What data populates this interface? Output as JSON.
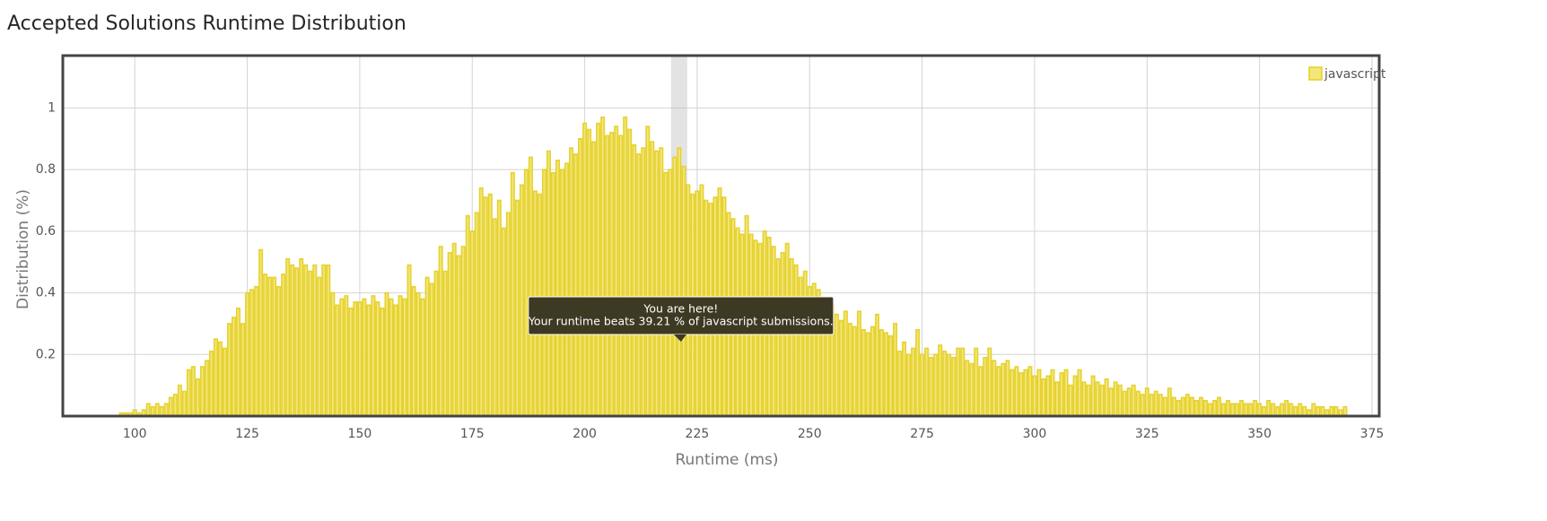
{
  "chart_data": {
    "type": "bar",
    "title": "Accepted Solutions Runtime Distribution",
    "x_label": "Runtime (ms)",
    "y_label": "Distribution (%)",
    "xlim": [
      84,
      376.6
    ],
    "ylim": [
      0,
      1.17
    ],
    "xticks": [
      100,
      125,
      150,
      175,
      200,
      225,
      250,
      275,
      300,
      325,
      350,
      375
    ],
    "yticks": [
      0.2,
      0.4,
      0.6,
      0.8,
      1.0
    ],
    "grid": true,
    "legend": "top-right",
    "highlight": 221,
    "annotations": [
      "You are here!",
      "Your runtime beats 39.21 % of javascript submissions."
    ],
    "series": [
      {
        "name": "javascript",
        "color": "#f3e67a",
        "edge_color": "#e6d230",
        "x": [
          95,
          96,
          97,
          98,
          99,
          100,
          101,
          102,
          103,
          104,
          105,
          106,
          107,
          108,
          109,
          110,
          111,
          112,
          113,
          114,
          115,
          116,
          117,
          118,
          119,
          120,
          121,
          122,
          123,
          124,
          125,
          126,
          127,
          128,
          129,
          130,
          131,
          132,
          133,
          134,
          135,
          136,
          137,
          138,
          139,
          140,
          141,
          142,
          143,
          144,
          145,
          146,
          147,
          148,
          149,
          150,
          151,
          152,
          153,
          154,
          155,
          156,
          157,
          158,
          159,
          160,
          161,
          162,
          163,
          164,
          165,
          166,
          167,
          168,
          169,
          170,
          171,
          172,
          173,
          174,
          175,
          176,
          177,
          178,
          179,
          180,
          181,
          182,
          183,
          184,
          185,
          186,
          187,
          188,
          189,
          190,
          191,
          192,
          193,
          194,
          195,
          196,
          197,
          198,
          199,
          200,
          201,
          202,
          203,
          204,
          205,
          206,
          207,
          208,
          209,
          210,
          211,
          212,
          213,
          214,
          215,
          216,
          217,
          218,
          219,
          220,
          221,
          222,
          223,
          224,
          225,
          226,
          227,
          228,
          229,
          230,
          231,
          232,
          233,
          234,
          235,
          236,
          237,
          238,
          239,
          240,
          241,
          242,
          243,
          244,
          245,
          246,
          247,
          248,
          249,
          250,
          251,
          252,
          253,
          254,
          255,
          256,
          257,
          258,
          259,
          260,
          261,
          262,
          263,
          264,
          265,
          266,
          267,
          268,
          269,
          270,
          271,
          272,
          273,
          274,
          275,
          276,
          277,
          278,
          279,
          280,
          281,
          282,
          283,
          284,
          285,
          286,
          287,
          288,
          289,
          290,
          291,
          292,
          293,
          294,
          295,
          296,
          297,
          298,
          299,
          300,
          301,
          302,
          303,
          304,
          305,
          306,
          307,
          308,
          309,
          310,
          311,
          312,
          313,
          314,
          315,
          316,
          317,
          318,
          319,
          320,
          321,
          322,
          323,
          324,
          325,
          326,
          327,
          328,
          329,
          330,
          331,
          332,
          333,
          334,
          335,
          336,
          337,
          338,
          339,
          340,
          341,
          342,
          343,
          344,
          345,
          346,
          347,
          348,
          349,
          350,
          351,
          352,
          353,
          354,
          355,
          356,
          357,
          358,
          359,
          360,
          361,
          362,
          363,
          364,
          365,
          366,
          367,
          368,
          369
        ],
        "values": [
          0,
          0,
          0.01,
          0.01,
          0.01,
          0.02,
          0.01,
          0.02,
          0.04,
          0.03,
          0.04,
          0.03,
          0.04,
          0.06,
          0.07,
          0.1,
          0.08,
          0.15,
          0.16,
          0.12,
          0.16,
          0.18,
          0.21,
          0.25,
          0.24,
          0.22,
          0.3,
          0.32,
          0.35,
          0.3,
          0.4,
          0.41,
          0.42,
          0.54,
          0.46,
          0.45,
          0.45,
          0.42,
          0.46,
          0.51,
          0.49,
          0.48,
          0.51,
          0.49,
          0.47,
          0.49,
          0.45,
          0.49,
          0.49,
          0.4,
          0.36,
          0.38,
          0.39,
          0.35,
          0.37,
          0.37,
          0.38,
          0.36,
          0.39,
          0.37,
          0.35,
          0.4,
          0.38,
          0.36,
          0.39,
          0.38,
          0.49,
          0.42,
          0.4,
          0.38,
          0.45,
          0.43,
          0.47,
          0.55,
          0.47,
          0.53,
          0.56,
          0.52,
          0.55,
          0.65,
          0.6,
          0.66,
          0.74,
          0.71,
          0.72,
          0.64,
          0.7,
          0.61,
          0.66,
          0.79,
          0.7,
          0.75,
          0.8,
          0.84,
          0.73,
          0.72,
          0.8,
          0.86,
          0.79,
          0.83,
          0.8,
          0.82,
          0.87,
          0.85,
          0.9,
          0.95,
          0.93,
          0.89,
          0.95,
          0.97,
          0.91,
          0.92,
          0.94,
          0.91,
          0.97,
          0.93,
          0.88,
          0.85,
          0.87,
          0.94,
          0.89,
          0.86,
          0.87,
          0.79,
          0.8,
          0.84,
          0.87,
          0.81,
          0.75,
          0.72,
          0.73,
          0.75,
          0.7,
          0.69,
          0.71,
          0.74,
          0.71,
          0.66,
          0.64,
          0.61,
          0.59,
          0.65,
          0.59,
          0.57,
          0.56,
          0.6,
          0.58,
          0.55,
          0.51,
          0.53,
          0.56,
          0.51,
          0.49,
          0.45,
          0.47,
          0.42,
          0.43,
          0.41,
          0.38,
          0.37,
          0.36,
          0.33,
          0.31,
          0.34,
          0.3,
          0.29,
          0.34,
          0.28,
          0.27,
          0.29,
          0.33,
          0.28,
          0.27,
          0.26,
          0.3,
          0.21,
          0.24,
          0.2,
          0.22,
          0.28,
          0.2,
          0.22,
          0.19,
          0.2,
          0.23,
          0.21,
          0.2,
          0.19,
          0.22,
          0.22,
          0.18,
          0.17,
          0.22,
          0.16,
          0.19,
          0.22,
          0.18,
          0.16,
          0.17,
          0.18,
          0.15,
          0.16,
          0.14,
          0.15,
          0.16,
          0.13,
          0.15,
          0.12,
          0.13,
          0.15,
          0.11,
          0.14,
          0.15,
          0.1,
          0.13,
          0.15,
          0.11,
          0.1,
          0.13,
          0.11,
          0.1,
          0.12,
          0.09,
          0.11,
          0.1,
          0.08,
          0.09,
          0.1,
          0.08,
          0.07,
          0.09,
          0.07,
          0.08,
          0.07,
          0.06,
          0.09,
          0.06,
          0.05,
          0.06,
          0.07,
          0.06,
          0.05,
          0.06,
          0.05,
          0.04,
          0.05,
          0.06,
          0.04,
          0.05,
          0.04,
          0.04,
          0.05,
          0.04,
          0.04,
          0.05,
          0.04,
          0.03,
          0.05,
          0.04,
          0.03,
          0.04,
          0.05,
          0.04,
          0.03,
          0.04,
          0.03,
          0.02,
          0.04,
          0.03,
          0.03,
          0.02,
          0.03,
          0.03,
          0.02,
          0.03
        ]
      }
    ]
  }
}
